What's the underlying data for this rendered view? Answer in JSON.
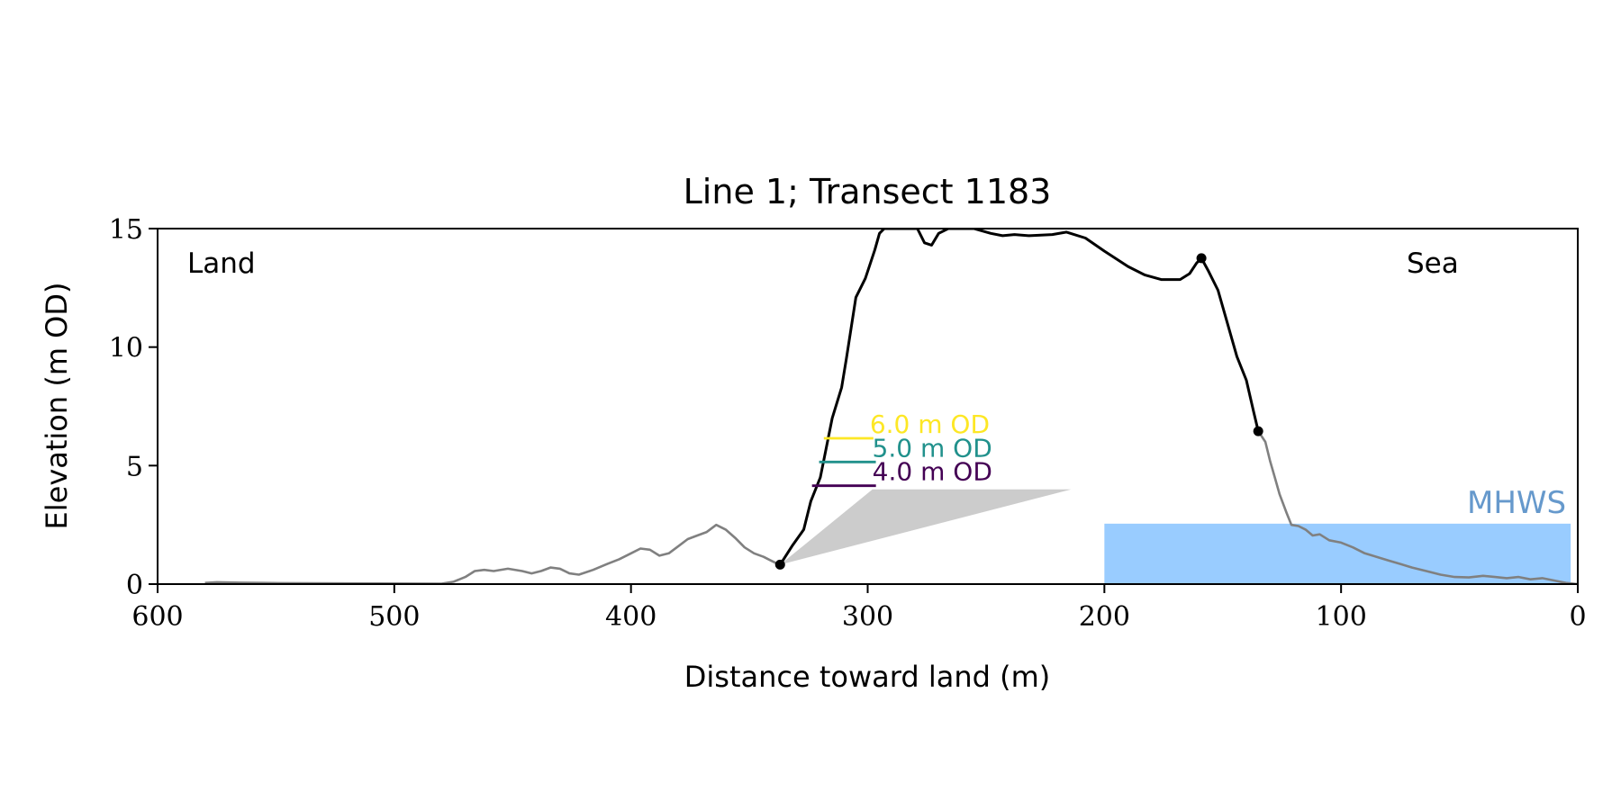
{
  "chart_data": {
    "type": "area",
    "title": "Line 1; Transect 1183",
    "xlabel": "Distance toward land (m)",
    "ylabel": "Elevation (m OD)",
    "xlim": [
      600,
      0
    ],
    "ylim": [
      0,
      15
    ],
    "x_ticks": [
      600,
      500,
      400,
      300,
      200,
      100,
      0
    ],
    "y_ticks": [
      0,
      5,
      10,
      15
    ],
    "x_tick_labels": [
      "600",
      "500",
      "400",
      "300",
      "200",
      "100",
      "0"
    ],
    "y_tick_labels": [
      "0",
      "5",
      "10",
      "15"
    ],
    "land_label": "Land",
    "sea_label": "Sea",
    "grid": false,
    "colors": {
      "dune_fill": "#fde725",
      "band_5": "#21a685",
      "band_4": "#482374",
      "base_fill": "#cccccc",
      "profile_ground": "#808080",
      "profile_dune": "#000000",
      "mhws": "#99ccff",
      "mhws_text": "#6699cc",
      "label_6": "#fde725",
      "label_5": "#21918c",
      "label_4": "#440154"
    },
    "mhws": {
      "label": "MHWS",
      "elevation": 2.55,
      "x_from": 200,
      "x_to": 3
    },
    "levels": [
      {
        "label": "6.0 m OD",
        "elevation": 6.0,
        "color_key": "label_6"
      },
      {
        "label": "5.0 m OD",
        "elevation": 5.0,
        "color_key": "label_5"
      },
      {
        "label": "4.0 m OD",
        "elevation": 4.0,
        "color_key": "label_4"
      }
    ],
    "ground_profile_west": [
      [
        580,
        0.05
      ],
      [
        575,
        0.08
      ],
      [
        565,
        0.06
      ],
      [
        555,
        0.05
      ],
      [
        548,
        0.04
      ],
      [
        480,
        0.02
      ],
      [
        475,
        0.1
      ],
      [
        470,
        0.3
      ],
      [
        466,
        0.55
      ],
      [
        462,
        0.6
      ],
      [
        458,
        0.55
      ],
      [
        452,
        0.65
      ],
      [
        446,
        0.55
      ],
      [
        442,
        0.45
      ],
      [
        438,
        0.55
      ],
      [
        434,
        0.7
      ],
      [
        430,
        0.65
      ],
      [
        426,
        0.45
      ],
      [
        422,
        0.4
      ],
      [
        416,
        0.6
      ],
      [
        410,
        0.85
      ],
      [
        405,
        1.05
      ],
      [
        400,
        1.3
      ],
      [
        396,
        1.5
      ],
      [
        392,
        1.45
      ],
      [
        388,
        1.2
      ],
      [
        384,
        1.3
      ],
      [
        380,
        1.6
      ],
      [
        376,
        1.9
      ],
      [
        372,
        2.05
      ],
      [
        368,
        2.2
      ],
      [
        364,
        2.5
      ],
      [
        360,
        2.3
      ],
      [
        356,
        1.95
      ],
      [
        352,
        1.55
      ],
      [
        348,
        1.3
      ],
      [
        344,
        1.15
      ],
      [
        341,
        1.0
      ],
      [
        338,
        0.85
      ],
      [
        337,
        0.82
      ]
    ],
    "dune_profile": [
      [
        337,
        0.82
      ],
      [
        332,
        1.6
      ],
      [
        327,
        2.3
      ],
      [
        324,
        3.5
      ],
      [
        320,
        4.5
      ],
      [
        318,
        5.5
      ],
      [
        315,
        7.0
      ],
      [
        311,
        8.3
      ],
      [
        309,
        9.5
      ],
      [
        307,
        10.8
      ],
      [
        305,
        12.1
      ],
      [
        301,
        12.9
      ],
      [
        297,
        14.1
      ],
      [
        295,
        14.8
      ],
      [
        293,
        15.0
      ],
      [
        285,
        15.0
      ],
      [
        279,
        15.0
      ],
      [
        276,
        14.4
      ],
      [
        273,
        14.3
      ],
      [
        270,
        14.8
      ],
      [
        266,
        15.0
      ],
      [
        255,
        15.0
      ],
      [
        248,
        14.8
      ],
      [
        243,
        14.7
      ],
      [
        238,
        14.75
      ],
      [
        232,
        14.7
      ],
      [
        222,
        14.75
      ],
      [
        216,
        14.85
      ],
      [
        208,
        14.6
      ],
      [
        200,
        14.05
      ],
      [
        190,
        13.4
      ],
      [
        183,
        13.05
      ],
      [
        176,
        12.85
      ],
      [
        168,
        12.85
      ],
      [
        164,
        13.1
      ],
      [
        161,
        13.55
      ],
      [
        159,
        13.75
      ],
      [
        156,
        13.2
      ],
      [
        152,
        12.4
      ],
      [
        148,
        11.0
      ],
      [
        144,
        9.6
      ],
      [
        140,
        8.6
      ],
      [
        137,
        7.3
      ],
      [
        135,
        6.45
      ]
    ],
    "ground_profile_east": [
      [
        135,
        6.45
      ],
      [
        132,
        6.0
      ],
      [
        130,
        5.2
      ],
      [
        128,
        4.5
      ],
      [
        126,
        3.8
      ],
      [
        123,
        3.0
      ],
      [
        121,
        2.5
      ],
      [
        118,
        2.45
      ],
      [
        115,
        2.3
      ],
      [
        112,
        2.05
      ],
      [
        109,
        2.1
      ],
      [
        105,
        1.85
      ],
      [
        100,
        1.75
      ],
      [
        95,
        1.55
      ],
      [
        90,
        1.3
      ],
      [
        85,
        1.15
      ],
      [
        80,
        1.0
      ],
      [
        75,
        0.85
      ],
      [
        70,
        0.7
      ],
      [
        64,
        0.55
      ],
      [
        58,
        0.4
      ],
      [
        52,
        0.3
      ],
      [
        46,
        0.28
      ],
      [
        40,
        0.35
      ],
      [
        35,
        0.3
      ],
      [
        30,
        0.25
      ],
      [
        25,
        0.3
      ],
      [
        20,
        0.2
      ],
      [
        15,
        0.25
      ],
      [
        10,
        0.15
      ],
      [
        5,
        0.05
      ],
      [
        0,
        0.0
      ]
    ],
    "offshore_blips": [
      [
        -10,
        0.02
      ],
      [
        -15,
        0.1
      ],
      [
        -20,
        0.03
      ],
      [
        -25,
        0.12
      ],
      [
        -30,
        0.02
      ]
    ],
    "markers": [
      [
        337,
        0.82
      ],
      [
        159,
        13.75
      ],
      [
        135,
        6.45
      ]
    ],
    "base_polygon": [
      [
        337,
        0.82
      ],
      [
        298,
        4.0
      ],
      [
        214,
        4.0
      ]
    ]
  }
}
